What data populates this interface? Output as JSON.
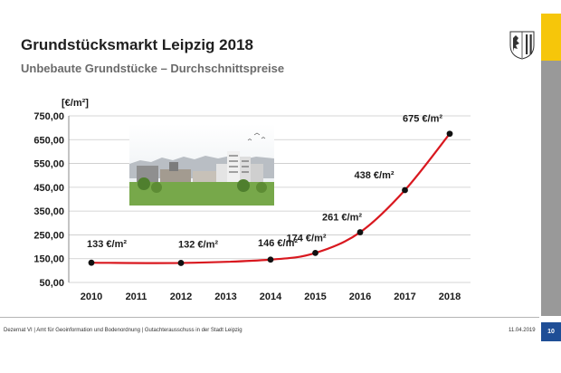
{
  "header": {
    "title": "Grundstücksmarkt Leipzig 2018",
    "subtitle": "Unbebaute Grundstücke – Durchschnittspreise"
  },
  "footer": {
    "text": "Dezernat VI | Amt für Geoinformation und Bodenordnung | Gutachterausschuss in der Stadt Leipzig",
    "date": "11.04.2019",
    "page": "10"
  },
  "colors": {
    "series_line": "#d9181f",
    "marker": "#111111",
    "accent_yellow": "#f6c60a",
    "side_gray": "#999999",
    "page_blue": "#1f4e96"
  },
  "icons": {
    "logo": "leipzig-coat-of-arms-icon"
  },
  "chart_data": {
    "type": "line",
    "ylabel": "[€/m²]",
    "xlabel": "",
    "x": [
      2010,
      2011,
      2012,
      2013,
      2014,
      2015,
      2016,
      2017,
      2018
    ],
    "series": [
      {
        "points": [
          {
            "x": 2010,
            "y": 133,
            "label": "133 €/m²"
          },
          {
            "x": 2012,
            "y": 132,
            "label": "132 €/m²"
          },
          {
            "x": 2014,
            "y": 146,
            "label": "146 €/m²"
          },
          {
            "x": 2015,
            "y": 174,
            "label": "174 €/m²"
          },
          {
            "x": 2016,
            "y": 261,
            "label": "261 €/m²"
          },
          {
            "x": 2017,
            "y": 438,
            "label": "438 €/m²"
          },
          {
            "x": 2018,
            "y": 675,
            "label": "675 €/m²"
          }
        ]
      }
    ],
    "yticks": [
      "50,00",
      "150,00",
      "250,00",
      "350,00",
      "450,00",
      "550,00",
      "650,00",
      "750,00"
    ],
    "ytick_values": [
      50,
      150,
      250,
      350,
      450,
      550,
      650,
      750
    ],
    "ylim": [
      50,
      750
    ],
    "xlim": [
      2010,
      2018
    ],
    "grid": true,
    "legend": "none"
  }
}
